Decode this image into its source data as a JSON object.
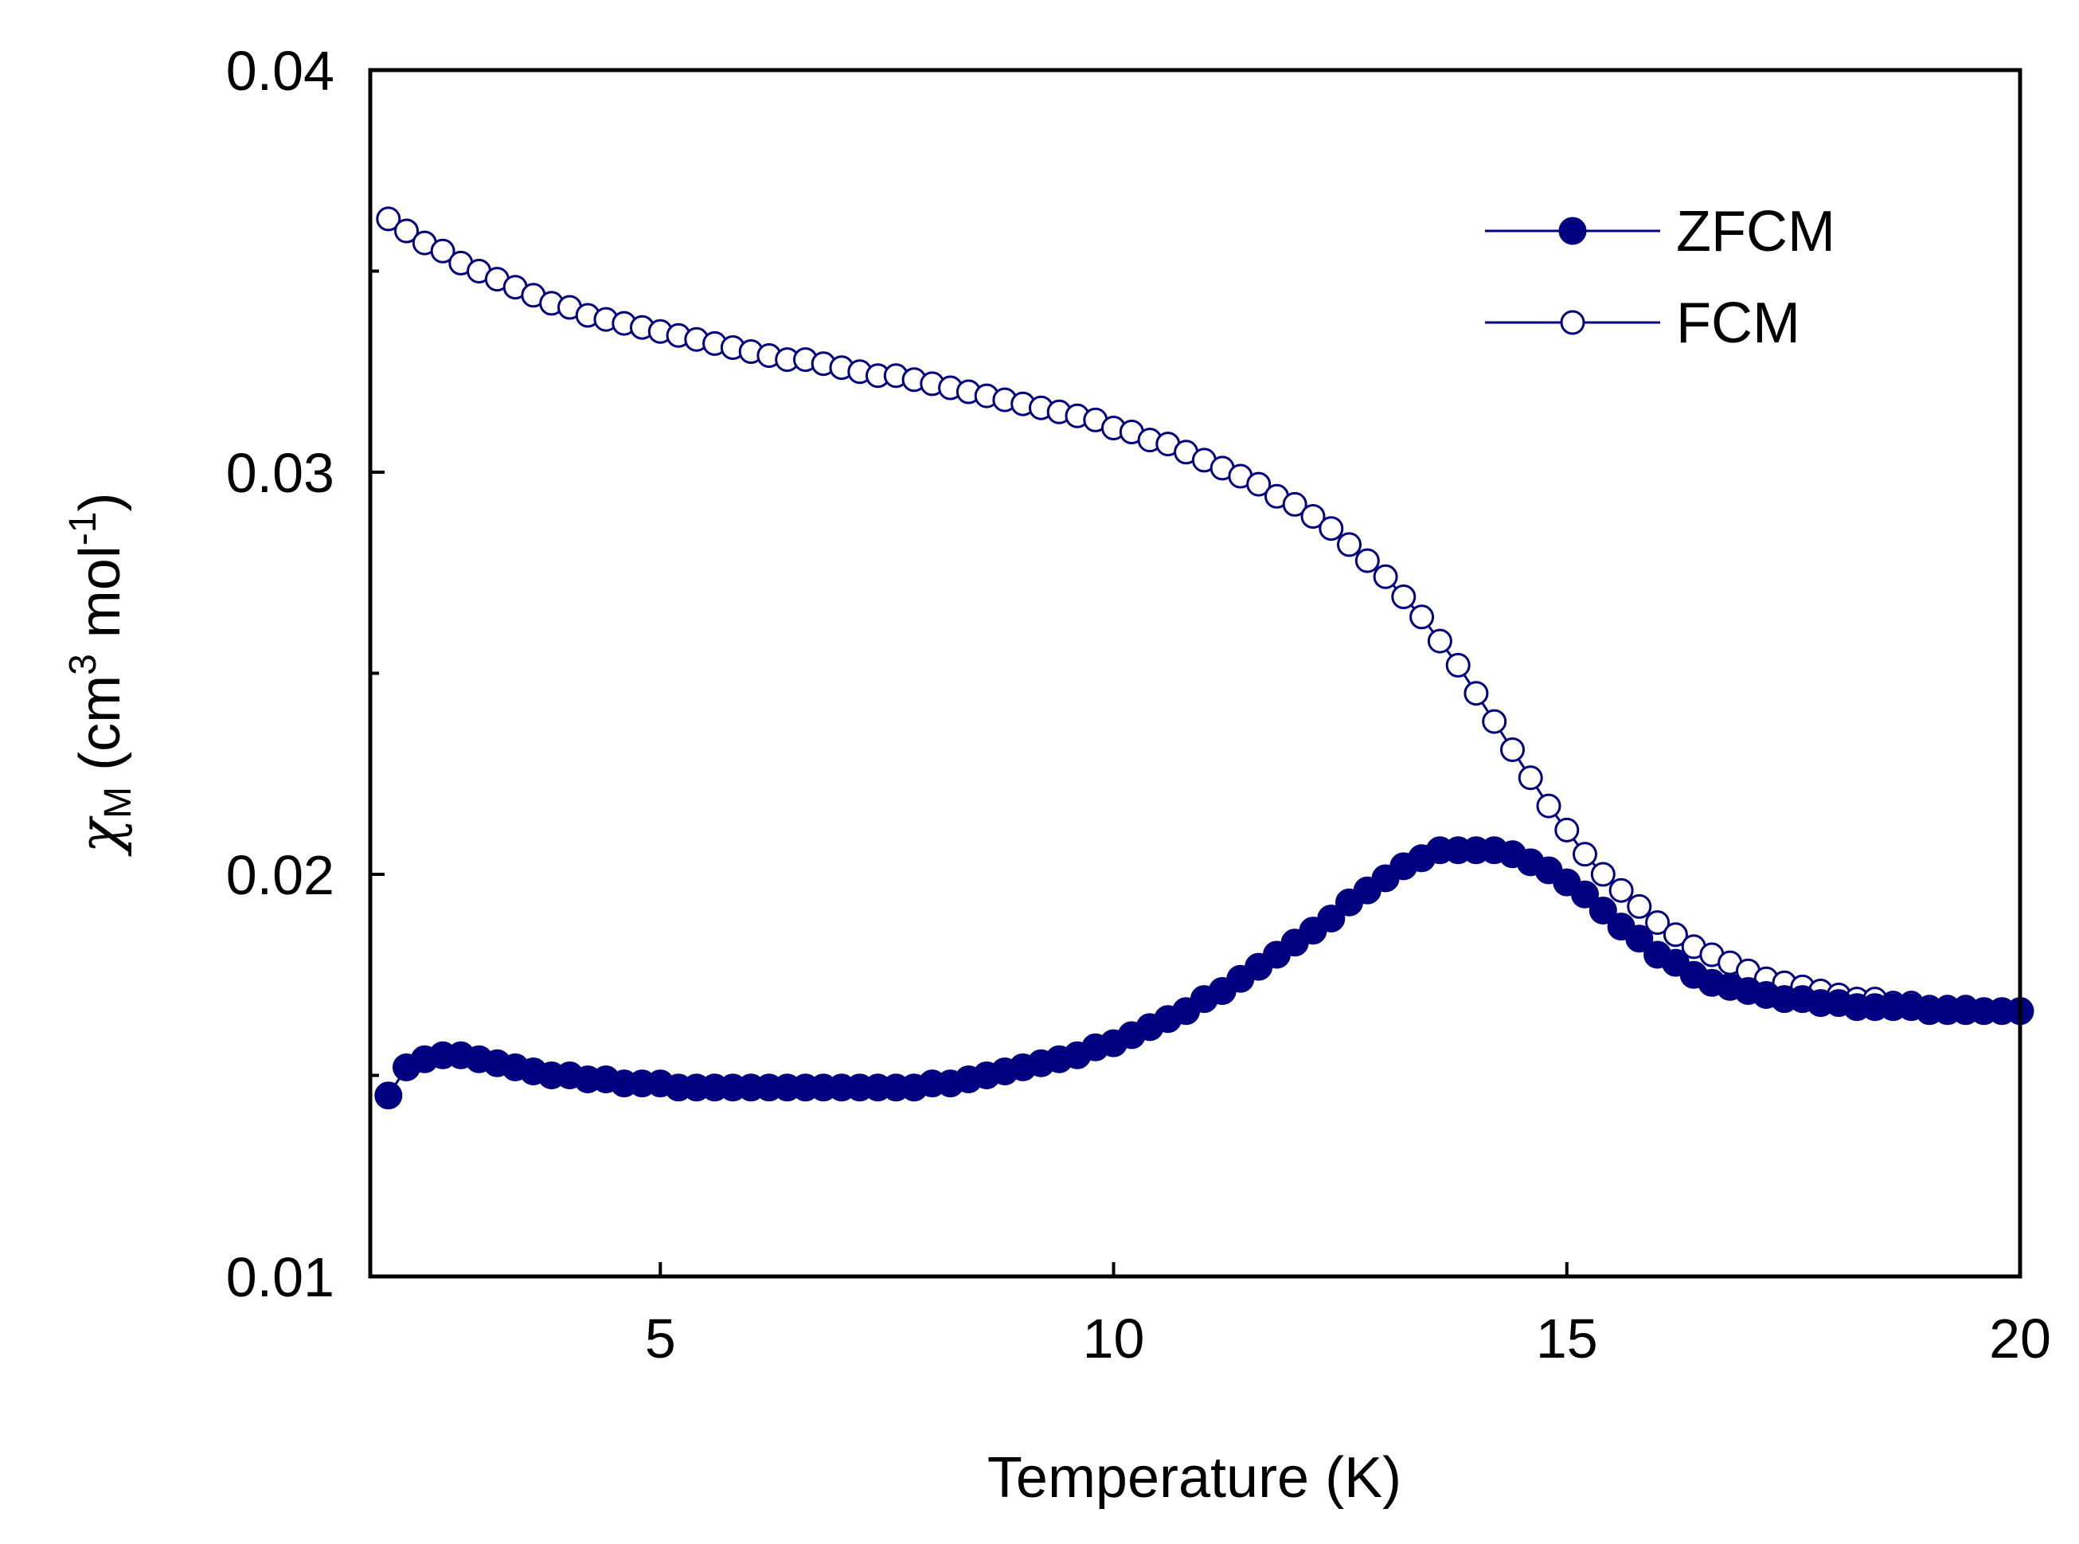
{
  "chart_data": {
    "type": "scatter",
    "title": "",
    "xlabel": "Temperature (K)",
    "ylabel": {
      "symbol": "χ",
      "subscript": "M",
      "units_prefix": " (cm",
      "units_exp1": "3",
      "units_mid": " mol",
      "units_exp2": "-1",
      "units_suffix": ")"
    },
    "xlim": [
      1.8,
      20
    ],
    "ylim": [
      0.01,
      0.04
    ],
    "x_ticks": [
      {
        "value": 5,
        "label": "5"
      },
      {
        "value": 10,
        "label": "10"
      },
      {
        "value": 15,
        "label": "15"
      },
      {
        "value": 20,
        "label": "20"
      }
    ],
    "y_ticks": [
      {
        "value": 0.01,
        "label": "0.01"
      },
      {
        "value": 0.02,
        "label": "0.02"
      },
      {
        "value": 0.03,
        "label": "0.03"
      },
      {
        "value": 0.04,
        "label": "0.04"
      }
    ],
    "y_minor_ticks": [
      0.015,
      0.025,
      0.035
    ],
    "grid": false,
    "legend_position": "top-right",
    "series": [
      {
        "name": "ZFCM",
        "marker": "filled-circle",
        "color": "#000080",
        "x": [
          2.0,
          2.2,
          2.4,
          2.6,
          2.8,
          3.0,
          3.2,
          3.4,
          3.6,
          3.8,
          4.0,
          4.2,
          4.4,
          4.6,
          4.8,
          5.0,
          5.2,
          5.4,
          5.6,
          5.8,
          6.0,
          6.2,
          6.4,
          6.6,
          6.8,
          7.0,
          7.2,
          7.4,
          7.6,
          7.8,
          8.0,
          8.2,
          8.4,
          8.6,
          8.8,
          9.0,
          9.2,
          9.4,
          9.6,
          9.8,
          10.0,
          10.2,
          10.4,
          10.6,
          10.8,
          11.0,
          11.2,
          11.4,
          11.6,
          11.8,
          12.0,
          12.2,
          12.4,
          12.6,
          12.8,
          13.0,
          13.2,
          13.4,
          13.6,
          13.8,
          14.0,
          14.2,
          14.4,
          14.6,
          14.8,
          15.0,
          15.2,
          15.4,
          15.6,
          15.8,
          16.0,
          16.2,
          16.4,
          16.6,
          16.8,
          17.0,
          17.2,
          17.4,
          17.6,
          17.8,
          18.0,
          18.2,
          18.4,
          18.6,
          18.8,
          19.0,
          19.2,
          19.4,
          19.6,
          19.8,
          20.0
        ],
        "values": [
          0.0145,
          0.0152,
          0.0154,
          0.0155,
          0.0155,
          0.0154,
          0.0153,
          0.0152,
          0.0151,
          0.015,
          0.015,
          0.0149,
          0.0149,
          0.0148,
          0.0148,
          0.0148,
          0.0147,
          0.0147,
          0.0147,
          0.0147,
          0.0147,
          0.0147,
          0.0147,
          0.0147,
          0.0147,
          0.0147,
          0.0147,
          0.0147,
          0.0147,
          0.0147,
          0.0148,
          0.0148,
          0.0149,
          0.015,
          0.0151,
          0.0152,
          0.0153,
          0.0154,
          0.0155,
          0.0157,
          0.0158,
          0.016,
          0.0162,
          0.0164,
          0.0166,
          0.0169,
          0.0171,
          0.0174,
          0.0177,
          0.018,
          0.0183,
          0.0186,
          0.0189,
          0.0193,
          0.0196,
          0.0199,
          0.0202,
          0.0204,
          0.0206,
          0.0206,
          0.0206,
          0.0206,
          0.0205,
          0.0203,
          0.0201,
          0.0198,
          0.0195,
          0.0191,
          0.0187,
          0.0184,
          0.018,
          0.0178,
          0.0175,
          0.0173,
          0.0172,
          0.0171,
          0.017,
          0.0169,
          0.0169,
          0.0168,
          0.0168,
          0.0167,
          0.0167,
          0.0167,
          0.0167,
          0.0166,
          0.0166,
          0.0166,
          0.0166,
          0.0166,
          0.0166
        ]
      },
      {
        "name": "FCM",
        "marker": "open-circle",
        "color": "#000080",
        "x": [
          2.0,
          2.2,
          2.4,
          2.6,
          2.8,
          3.0,
          3.2,
          3.4,
          3.6,
          3.8,
          4.0,
          4.2,
          4.4,
          4.6,
          4.8,
          5.0,
          5.2,
          5.4,
          5.6,
          5.8,
          6.0,
          6.2,
          6.4,
          6.6,
          6.8,
          7.0,
          7.2,
          7.4,
          7.6,
          7.8,
          8.0,
          8.2,
          8.4,
          8.6,
          8.8,
          9.0,
          9.2,
          9.4,
          9.6,
          9.8,
          10.0,
          10.2,
          10.4,
          10.6,
          10.8,
          11.0,
          11.2,
          11.4,
          11.6,
          11.8,
          12.0,
          12.2,
          12.4,
          12.6,
          12.8,
          13.0,
          13.2,
          13.4,
          13.6,
          13.8,
          14.0,
          14.2,
          14.4,
          14.6,
          14.8,
          15.0,
          15.2,
          15.4,
          15.6,
          15.8,
          16.0,
          16.2,
          16.4,
          16.6,
          16.8,
          17.0,
          17.2,
          17.4,
          17.6,
          17.8,
          18.0,
          18.2,
          18.4,
          18.6,
          18.8,
          19.0,
          19.2,
          19.4,
          19.6,
          19.8,
          20.0
        ],
        "values": [
          0.0363,
          0.036,
          0.0357,
          0.0355,
          0.0352,
          0.035,
          0.0348,
          0.0346,
          0.0344,
          0.0342,
          0.0341,
          0.0339,
          0.0338,
          0.0337,
          0.0336,
          0.0335,
          0.0334,
          0.0333,
          0.0332,
          0.0331,
          0.033,
          0.0329,
          0.0328,
          0.0328,
          0.0327,
          0.0326,
          0.0325,
          0.0324,
          0.0324,
          0.0323,
          0.0322,
          0.0321,
          0.032,
          0.0319,
          0.0318,
          0.0317,
          0.0316,
          0.0315,
          0.0314,
          0.0313,
          0.0311,
          0.031,
          0.0308,
          0.0307,
          0.0305,
          0.0303,
          0.0301,
          0.0299,
          0.0297,
          0.0294,
          0.0292,
          0.0289,
          0.0286,
          0.0282,
          0.0278,
          0.0274,
          0.0269,
          0.0264,
          0.0258,
          0.0252,
          0.0245,
          0.0238,
          0.0231,
          0.0224,
          0.0217,
          0.0211,
          0.0205,
          0.02,
          0.0196,
          0.0192,
          0.0188,
          0.0185,
          0.0182,
          0.018,
          0.0178,
          0.0176,
          0.0174,
          0.0173,
          0.0172,
          0.0171,
          0.017,
          0.0169,
          0.0169,
          0.0168,
          0.0168,
          0.0167,
          0.0167,
          0.0167,
          0.0166,
          0.0166,
          0.0166
        ]
      }
    ]
  }
}
